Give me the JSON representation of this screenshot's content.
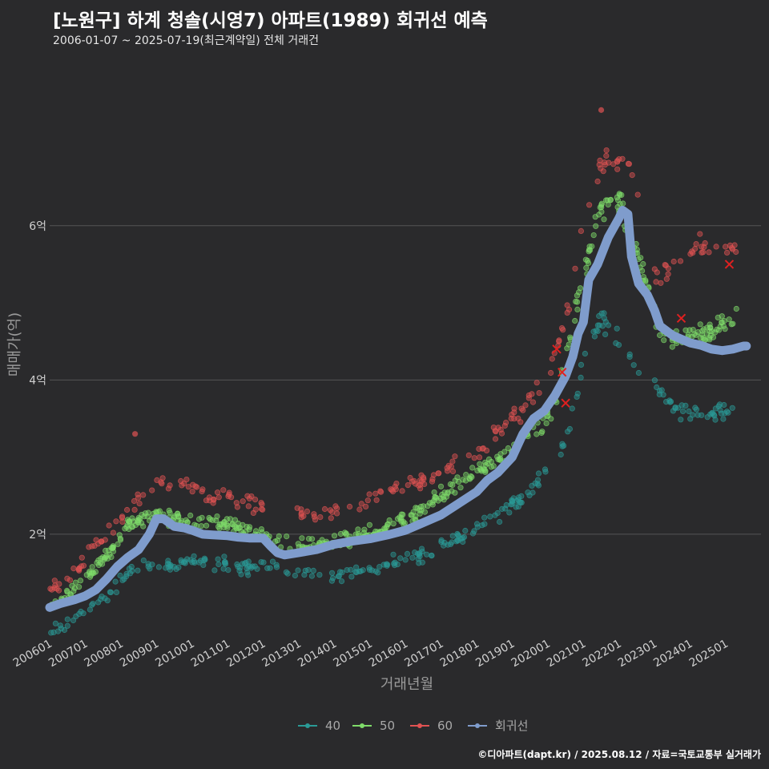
{
  "header": {
    "title": "[노원구] 하계 청솔(시영7) 아파트(1989) 회귀선 예측",
    "subtitle": "2006-01-07 ~ 2025-07-19(최근계약일) 전체 거래건"
  },
  "footer": {
    "credit": "©디아파트(dapt.kr) / 2025.08.12 / 자료=국토교통부 실거래가"
  },
  "colors": {
    "background": "#2a2a2c",
    "grid": "#555555",
    "s40": "#2a9a96",
    "s50": "#7fdc6a",
    "s60": "#e05252",
    "regression": "#7f9ccc",
    "marker_x": "#e02020"
  },
  "chart_data": {
    "type": "scatter",
    "title": "[노원구] 하계 청솔(시영7) 아파트(1989) 회귀선 예측",
    "xlabel": "거래년월",
    "ylabel": "매매가(억)",
    "xlim": [
      "2006-01",
      "2025-12"
    ],
    "ylim": [
      0.7,
      8.2
    ],
    "y_ticks": [
      {
        "value": 2,
        "label": "2억"
      },
      {
        "value": 4,
        "label": "4억"
      },
      {
        "value": 6,
        "label": "6억"
      }
    ],
    "x_ticks": [
      "200601",
      "200701",
      "200801",
      "200901",
      "201001",
      "201101",
      "201201",
      "201301",
      "201401",
      "201501",
      "201601",
      "201701",
      "201801",
      "201901",
      "202001",
      "202101",
      "202201",
      "202301",
      "202401",
      "202501"
    ],
    "grid": true,
    "legend_position": "bottom",
    "legend": [
      "40",
      "50",
      "60",
      "회귀선"
    ],
    "series": [
      {
        "name": "40",
        "color": "#2a9a96",
        "anchors": [
          [
            2006.0,
            0.75
          ],
          [
            2006.5,
            0.85
          ],
          [
            2007.0,
            1.0
          ],
          [
            2007.6,
            1.2
          ],
          [
            2008.2,
            1.5
          ],
          [
            2008.8,
            1.6
          ],
          [
            2009.5,
            1.6
          ],
          [
            2010.5,
            1.65
          ],
          [
            2011.0,
            1.6
          ],
          [
            2011.5,
            1.55
          ],
          [
            2012.0,
            1.6
          ],
          [
            2012.5,
            1.55
          ],
          [
            2013.0,
            1.5
          ],
          [
            2013.5,
            1.5
          ],
          [
            2014.0,
            1.45
          ],
          [
            2014.5,
            1.5
          ],
          [
            2015.0,
            1.55
          ],
          [
            2015.5,
            1.6
          ],
          [
            2016.0,
            1.7
          ],
          [
            2016.5,
            1.75
          ],
          [
            2017.0,
            1.85
          ],
          [
            2017.5,
            1.95
          ],
          [
            2018.0,
            2.05
          ],
          [
            2018.5,
            2.2
          ],
          [
            2019.0,
            2.4
          ],
          [
            2019.5,
            2.55
          ],
          [
            2020.0,
            2.8
          ],
          [
            2020.5,
            3.2
          ],
          [
            2021.0,
            4.3
          ],
          [
            2021.5,
            4.8
          ],
          [
            2023.2,
            3.8
          ],
          [
            2023.8,
            3.6
          ],
          [
            2024.5,
            3.55
          ],
          [
            2025.4,
            3.6
          ]
        ]
      },
      {
        "name": "50",
        "color": "#7fdc6a",
        "anchors": [
          [
            2006.0,
            1.05
          ],
          [
            2006.5,
            1.2
          ],
          [
            2007.0,
            1.45
          ],
          [
            2007.6,
            1.7
          ],
          [
            2008.2,
            2.1
          ],
          [
            2008.8,
            2.25
          ],
          [
            2009.5,
            2.2
          ],
          [
            2010.5,
            2.15
          ],
          [
            2011.0,
            2.1
          ],
          [
            2011.5,
            2.05
          ],
          [
            2012.0,
            2.0
          ],
          [
            2012.5,
            1.9
          ],
          [
            2013.0,
            1.85
          ],
          [
            2013.5,
            1.85
          ],
          [
            2014.0,
            1.9
          ],
          [
            2014.5,
            1.95
          ],
          [
            2015.0,
            2.0
          ],
          [
            2015.5,
            2.1
          ],
          [
            2016.0,
            2.2
          ],
          [
            2016.5,
            2.35
          ],
          [
            2017.0,
            2.5
          ],
          [
            2017.5,
            2.65
          ],
          [
            2018.0,
            2.8
          ],
          [
            2018.5,
            2.95
          ],
          [
            2019.0,
            3.1
          ],
          [
            2019.5,
            3.35
          ],
          [
            2020.0,
            3.5
          ],
          [
            2020.5,
            4.2
          ],
          [
            2021.0,
            5.4
          ],
          [
            2021.5,
            6.2
          ],
          [
            2022.0,
            6.3
          ],
          [
            2022.6,
            5.5
          ],
          [
            2023.2,
            4.6
          ],
          [
            2023.8,
            4.55
          ],
          [
            2024.5,
            4.6
          ],
          [
            2025.4,
            4.85
          ]
        ]
      },
      {
        "name": "60",
        "color": "#e05252",
        "anchors": [
          [
            2006.0,
            1.3
          ],
          [
            2006.5,
            1.35
          ],
          [
            2007.0,
            1.7
          ],
          [
            2007.6,
            2.0
          ],
          [
            2008.2,
            2.3
          ],
          [
            2008.8,
            2.6
          ],
          [
            2009.5,
            2.7
          ],
          [
            2010.5,
            2.5
          ],
          [
            2011.0,
            2.5
          ],
          [
            2011.5,
            2.4
          ],
          [
            2013.0,
            2.3
          ],
          [
            2013.5,
            2.25
          ],
          [
            2014.0,
            2.3
          ],
          [
            2014.5,
            2.35
          ],
          [
            2015.0,
            2.45
          ],
          [
            2015.5,
            2.55
          ],
          [
            2016.0,
            2.6
          ],
          [
            2016.5,
            2.7
          ],
          [
            2017.0,
            2.8
          ],
          [
            2017.5,
            2.95
          ],
          [
            2018.0,
            3.1
          ],
          [
            2018.5,
            3.3
          ],
          [
            2019.0,
            3.5
          ],
          [
            2019.5,
            3.75
          ],
          [
            2020.0,
            4.0
          ],
          [
            2020.5,
            4.8
          ],
          [
            2021.0,
            6.1
          ],
          [
            2021.5,
            6.8
          ],
          [
            2022.3,
            6.9
          ],
          [
            2023.0,
            5.3
          ],
          [
            2023.6,
            5.5
          ],
          [
            2024.2,
            5.75
          ],
          [
            2025.3,
            5.6
          ]
        ],
        "outliers": [
          [
            2008.4,
            3.3
          ],
          [
            2021.5,
            7.5
          ]
        ],
        "markers_x": [
          [
            2020.25,
            4.4
          ],
          [
            2020.4,
            4.1
          ],
          [
            2020.5,
            3.7
          ],
          [
            2023.75,
            4.8
          ],
          [
            2025.1,
            5.5
          ]
        ]
      },
      {
        "name": "회귀선",
        "color": "#7f9ccc",
        "points": [
          [
            2006.0,
            1.05
          ],
          [
            2006.3,
            1.1
          ],
          [
            2006.7,
            1.15
          ],
          [
            2007.0,
            1.2
          ],
          [
            2007.3,
            1.28
          ],
          [
            2007.6,
            1.42
          ],
          [
            2007.9,
            1.58
          ],
          [
            2008.2,
            1.7
          ],
          [
            2008.5,
            1.8
          ],
          [
            2008.8,
            2.0
          ],
          [
            2009.0,
            2.2
          ],
          [
            2009.2,
            2.2
          ],
          [
            2009.5,
            2.1
          ],
          [
            2009.8,
            2.08
          ],
          [
            2010.0,
            2.05
          ],
          [
            2010.3,
            2.0
          ],
          [
            2010.6,
            1.99
          ],
          [
            2011.0,
            1.98
          ],
          [
            2011.3,
            1.96
          ],
          [
            2011.6,
            1.95
          ],
          [
            2012.0,
            1.95
          ],
          [
            2012.2,
            1.85
          ],
          [
            2012.4,
            1.76
          ],
          [
            2012.6,
            1.73
          ],
          [
            2013.0,
            1.76
          ],
          [
            2013.5,
            1.8
          ],
          [
            2014.0,
            1.87
          ],
          [
            2014.5,
            1.91
          ],
          [
            2015.0,
            1.94
          ],
          [
            2015.5,
            1.99
          ],
          [
            2016.0,
            2.05
          ],
          [
            2016.5,
            2.15
          ],
          [
            2017.0,
            2.25
          ],
          [
            2017.5,
            2.4
          ],
          [
            2018.0,
            2.55
          ],
          [
            2018.3,
            2.7
          ],
          [
            2018.6,
            2.8
          ],
          [
            2019.0,
            3.0
          ],
          [
            2019.3,
            3.3
          ],
          [
            2019.6,
            3.5
          ],
          [
            2019.9,
            3.6
          ],
          [
            2020.2,
            3.8
          ],
          [
            2020.5,
            4.05
          ],
          [
            2020.7,
            4.3
          ],
          [
            2020.85,
            4.6
          ],
          [
            2021.0,
            4.75
          ],
          [
            2021.15,
            5.3
          ],
          [
            2021.4,
            5.5
          ],
          [
            2021.7,
            5.85
          ],
          [
            2022.0,
            6.1
          ],
          [
            2022.1,
            6.2
          ],
          [
            2022.25,
            6.15
          ],
          [
            2022.35,
            5.6
          ],
          [
            2022.55,
            5.25
          ],
          [
            2022.8,
            5.1
          ],
          [
            2023.0,
            4.9
          ],
          [
            2023.15,
            4.7
          ],
          [
            2023.5,
            4.58
          ],
          [
            2023.8,
            4.52
          ],
          [
            2024.0,
            4.48
          ],
          [
            2024.3,
            4.45
          ],
          [
            2024.6,
            4.4
          ],
          [
            2024.9,
            4.38
          ],
          [
            2025.2,
            4.4
          ],
          [
            2025.5,
            4.44
          ],
          [
            2025.58,
            4.44
          ]
        ]
      }
    ]
  }
}
